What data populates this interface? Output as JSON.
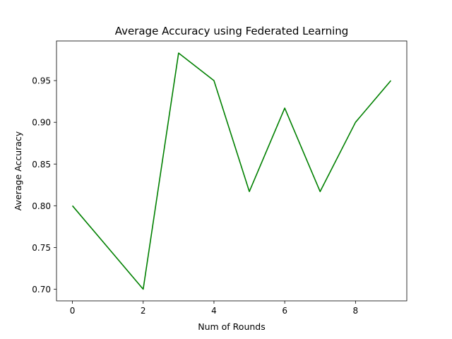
{
  "chart_data": {
    "type": "line",
    "title": "Average Accuracy using Federated Learning",
    "xlabel": "Num of Rounds",
    "ylabel": "Average Accuracy",
    "xlim": [
      -0.45,
      9.45
    ],
    "ylim": [
      0.686,
      0.9975
    ],
    "xticks": [
      0,
      2,
      4,
      6,
      8
    ],
    "xtick_labels": [
      "0",
      "2",
      "4",
      "6",
      "8"
    ],
    "yticks": [
      0.7,
      0.75,
      0.8,
      0.85,
      0.9,
      0.95
    ],
    "ytick_labels": [
      "0.70",
      "0.75",
      "0.80",
      "0.85",
      "0.90",
      "0.95"
    ],
    "grid": false,
    "series": [
      {
        "color": "#008000",
        "x": [
          0,
          1,
          2,
          3,
          4,
          5,
          6,
          7,
          8,
          9
        ],
        "y": [
          0.8,
          0.75,
          0.7,
          0.983,
          0.95,
          0.817,
          0.917,
          0.817,
          0.9,
          0.95
        ]
      }
    ]
  }
}
